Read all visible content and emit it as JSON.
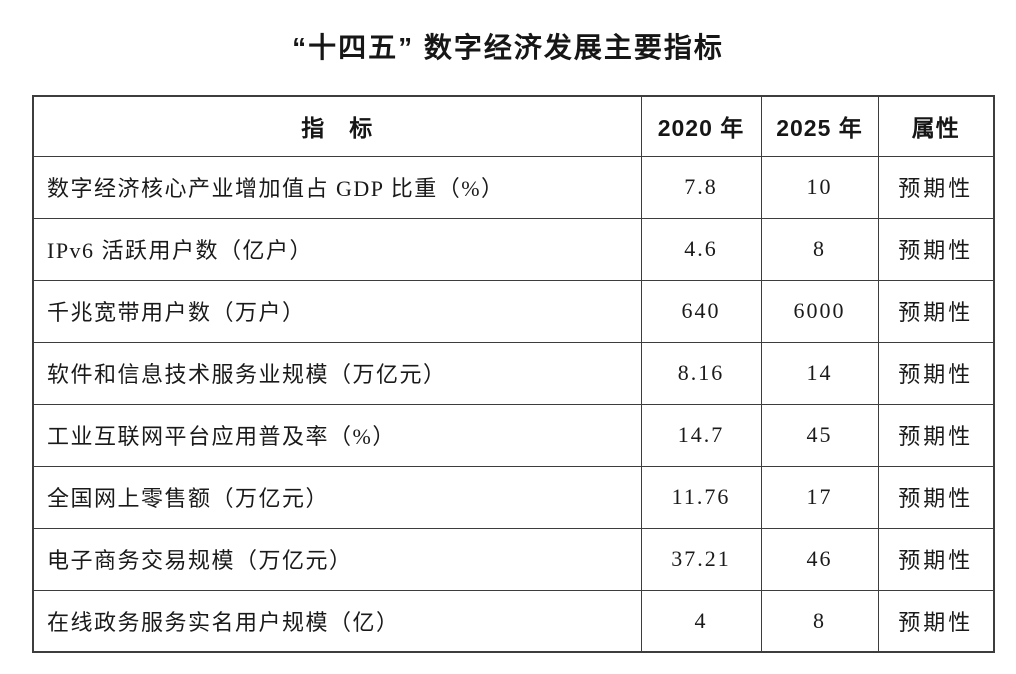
{
  "title": "“十四五” 数字经济发展主要指标",
  "colors": {
    "background": "#ffffff",
    "text": "#1a1a1a",
    "border": "#3d3d3d"
  },
  "table": {
    "headers": [
      "指　标",
      "2020 年",
      "2025 年",
      "属性"
    ],
    "rows": [
      {
        "indicator": "数字经济核心产业增加值占 GDP 比重（%）",
        "y2020": "7.8",
        "y2025": "10",
        "attribute": "预期性"
      },
      {
        "indicator": "IPv6 活跃用户数（亿户）",
        "y2020": "4.6",
        "y2025": "8",
        "attribute": "预期性"
      },
      {
        "indicator": "千兆宽带用户数（万户）",
        "y2020": "640",
        "y2025": "6000",
        "attribute": "预期性"
      },
      {
        "indicator": "软件和信息技术服务业规模（万亿元）",
        "y2020": "8.16",
        "y2025": "14",
        "attribute": "预期性"
      },
      {
        "indicator": "工业互联网平台应用普及率（%）",
        "y2020": "14.7",
        "y2025": "45",
        "attribute": "预期性"
      },
      {
        "indicator": "全国网上零售额（万亿元）",
        "y2020": "11.76",
        "y2025": "17",
        "attribute": "预期性"
      },
      {
        "indicator": "电子商务交易规模（万亿元）",
        "y2020": "37.21",
        "y2025": "46",
        "attribute": "预期性"
      },
      {
        "indicator": "在线政务服务实名用户规模（亿）",
        "y2020": "4",
        "y2025": "8",
        "attribute": "预期性"
      }
    ]
  }
}
